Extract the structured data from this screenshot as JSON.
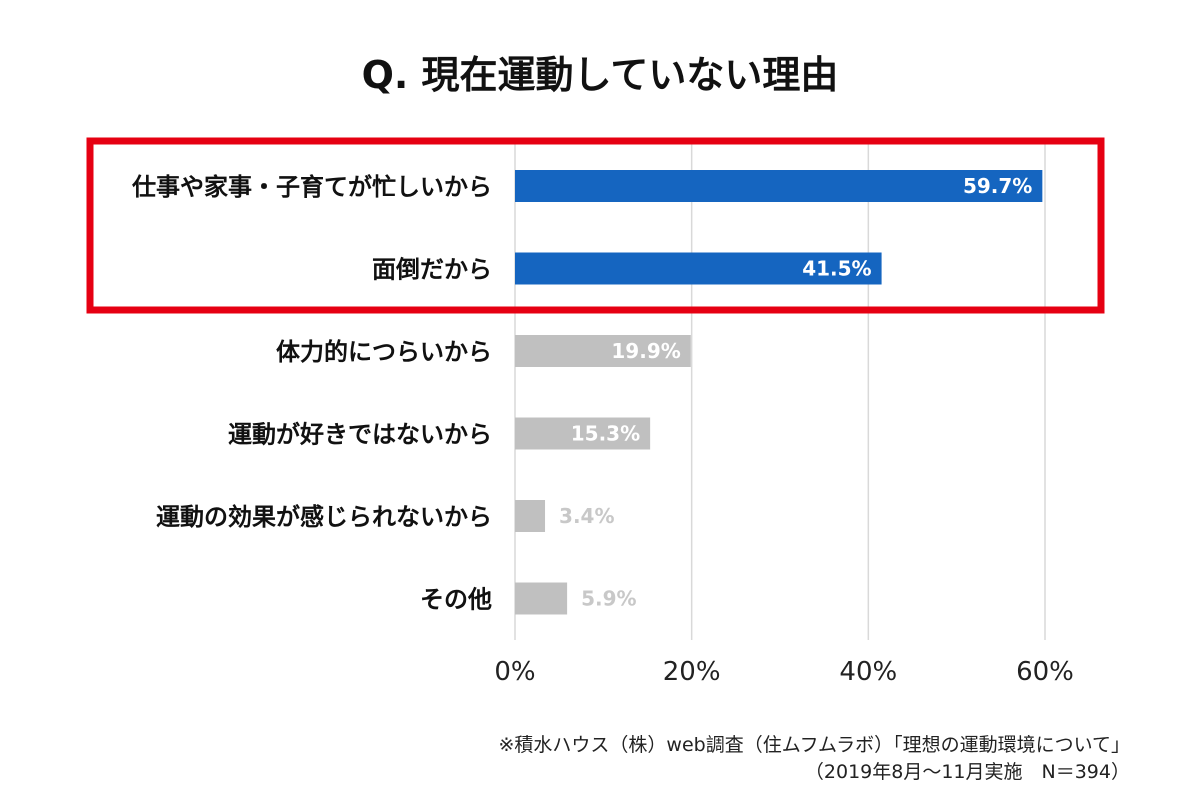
{
  "title": "Q. 現在運動していない理由",
  "source_line1": "※積水ハウス（株）web調査（住ムフムラボ）「理想の運動環境について」",
  "source_line2": "（2019年8月～11月実施　N＝394）",
  "colors": {
    "highlight_bar": "#1565c0",
    "normal_bar": "#c0c0c0",
    "highlight_box": "#e60012",
    "grid": "#d9d9d9"
  },
  "chart_data": {
    "type": "bar",
    "orientation": "horizontal",
    "title": "Q. 現在運動していない理由",
    "categories": [
      "仕事や家事・子育てが忙しいから",
      "面倒だから",
      "体力的につらいから",
      "運動が好きではないから",
      "運動の効果が感じられないから",
      "その他"
    ],
    "values": [
      59.7,
      41.5,
      19.9,
      15.3,
      3.4,
      5.9
    ],
    "value_labels": [
      "59.7%",
      "41.5%",
      "19.9%",
      "15.3%",
      "3.4%",
      "5.9%"
    ],
    "highlighted": [
      true,
      true,
      false,
      false,
      false,
      false
    ],
    "xticks": [
      "0%",
      "20%",
      "40%",
      "60%"
    ],
    "xtick_values": [
      0,
      20,
      40,
      60
    ],
    "xlim": [
      0,
      60
    ],
    "grid": true,
    "xlabel": "",
    "ylabel": ""
  }
}
